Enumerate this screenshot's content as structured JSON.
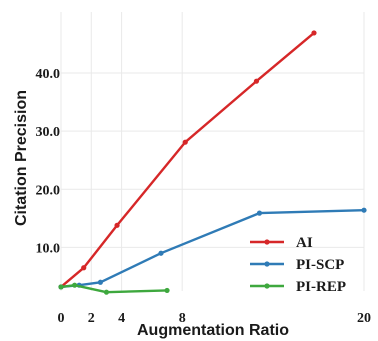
{
  "chart_data": {
    "type": "line",
    "xlabel": "Augmentation Ratio",
    "ylabel": "Citation Precision",
    "xlim": [
      0,
      20
    ],
    "ylim": [
      2.5,
      50.5
    ],
    "x_ticks": [
      0,
      2,
      4,
      8,
      20
    ],
    "x_tick_labels": [
      "0",
      "2",
      "4",
      "8",
      "20"
    ],
    "y_ticks": [
      10,
      20,
      30,
      40
    ],
    "y_tick_labels": [
      "10.0",
      "20.0",
      "30.0",
      "40.0"
    ],
    "grid": true,
    "legend_position": "bottom-right",
    "series": [
      {
        "name": "AI",
        "color": "#d62728",
        "x": [
          0,
          1.5,
          3.7,
          8.2,
          12.9,
          16.7
        ],
        "y": [
          3.2,
          6.5,
          13.8,
          28.1,
          38.6,
          46.9
        ]
      },
      {
        "name": "PI-SCP",
        "color": "#2f7bb6",
        "x": [
          0,
          1.2,
          2.6,
          6.6,
          13.1,
          20.0
        ],
        "y": [
          3.2,
          3.5,
          4.0,
          9.0,
          15.9,
          16.4
        ]
      },
      {
        "name": "PI-REP",
        "color": "#3ea83e",
        "x": [
          0,
          0.9,
          3.0,
          7.0
        ],
        "y": [
          3.2,
          3.5,
          2.3,
          2.6
        ]
      }
    ]
  }
}
